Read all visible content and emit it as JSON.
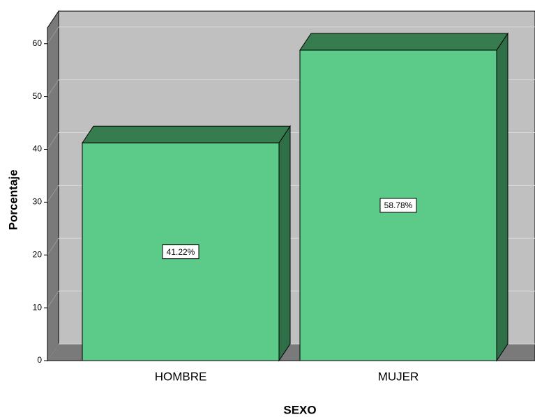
{
  "chart_data": {
    "type": "bar3d",
    "x_label": "SEXO",
    "y_label": "Porcentaje",
    "categories": [
      "HOMBRE",
      "MUJER"
    ],
    "values": [
      41.22,
      58.78
    ],
    "value_labels": [
      "41.22%",
      "58.78%"
    ],
    "color": "#5ccb8a",
    "top_color": "#367c4f",
    "side_color": "#2f6f47",
    "ylim": [
      0,
      63
    ],
    "yticks": [
      0,
      10,
      20,
      30,
      40,
      50,
      60
    ],
    "grid": true
  }
}
